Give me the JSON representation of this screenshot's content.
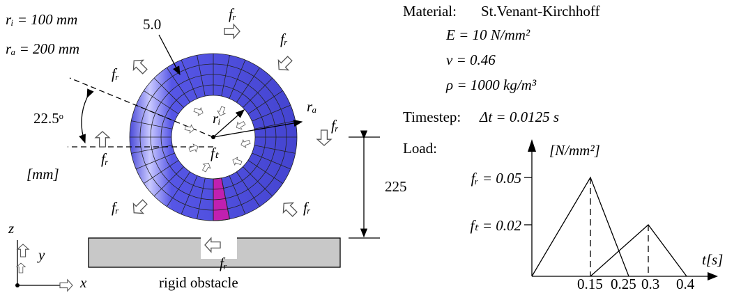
{
  "geometry": {
    "inner_radius": "rᵢ = 100 mm",
    "outer_radius": "rₐ = 200 mm",
    "thickness": "5.0",
    "angle": "22.5ᵒ",
    "unit": "[mm]",
    "height": "225",
    "ring_labels": [
      "rᵢ",
      "rₐ"
    ]
  },
  "forces": {
    "radial": [
      "fᵣ",
      "fᵣ",
      "fᵣ",
      "fᵣ",
      "fᵣ",
      "fᵣ",
      "fᵣ",
      "fᵣ"
    ],
    "tangential": "fₜ"
  },
  "axes": {
    "z": "z",
    "y": "y",
    "x": "x"
  },
  "obstacle": "rigid obstacle",
  "material": {
    "label": "Material:",
    "name": "St.Venant-Kirchhoff",
    "properties": [
      "E = 10 N/mm²",
      "ν = 0.46",
      "ρ = 1000 kg/m³"
    ]
  },
  "timestep": {
    "label": "Timestep:",
    "value": "Δt = 0.0125 s"
  },
  "load": {
    "label": "Load:",
    "unit": "[N/mm²]",
    "levels": [
      "fᵣ = 0.05",
      "fₜ = 0.02"
    ],
    "time_axis": "t[s]",
    "times": [
      "0.15",
      "0.25",
      "0.3",
      "0.4"
    ]
  }
}
